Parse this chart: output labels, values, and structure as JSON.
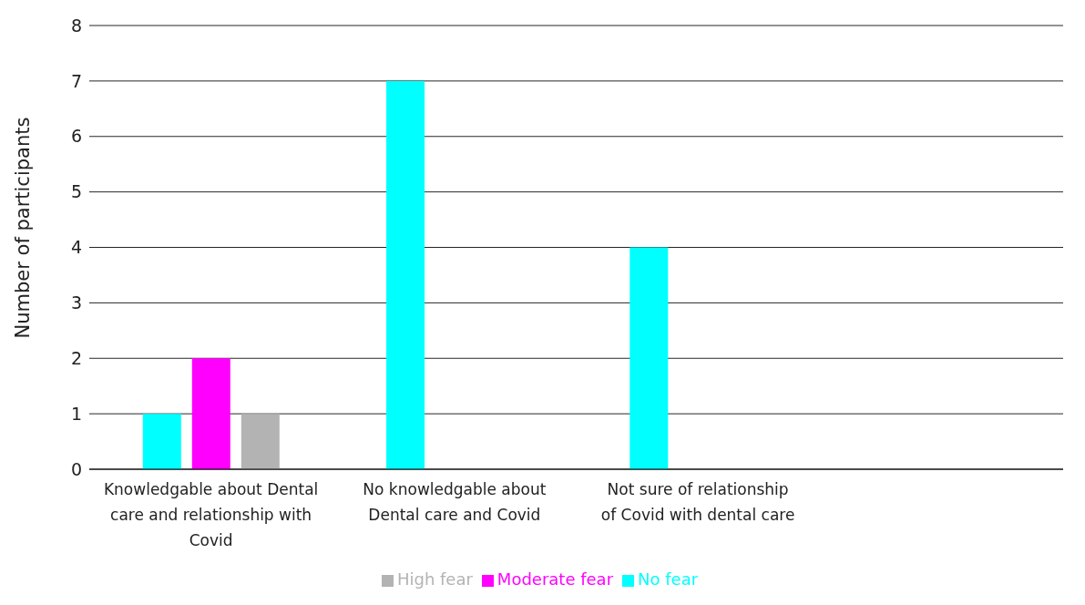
{
  "chart_data": {
    "type": "bar",
    "ylabel": "Number of participants",
    "categories": [
      "Knowledgable about Dental care and relationship with Covid",
      "No knowledgable about Dental care and Covid",
      "Not sure of relationship of Covid with dental care",
      null
    ],
    "series": [
      {
        "name": "No fear",
        "color": "#00ffff",
        "values": [
          1,
          7,
          4,
          null
        ]
      },
      {
        "name": "Moderate fear",
        "color": "#ff00ff",
        "values": [
          2,
          0,
          0,
          null
        ]
      },
      {
        "name": "High fear",
        "color": "#b3b3b3",
        "values": [
          1,
          0,
          0,
          null
        ]
      }
    ],
    "ylim": [
      0,
      8
    ],
    "yticks": [
      0,
      1,
      2,
      3,
      4,
      5,
      6,
      7,
      8
    ],
    "grid": "y",
    "legend": "bottom"
  }
}
